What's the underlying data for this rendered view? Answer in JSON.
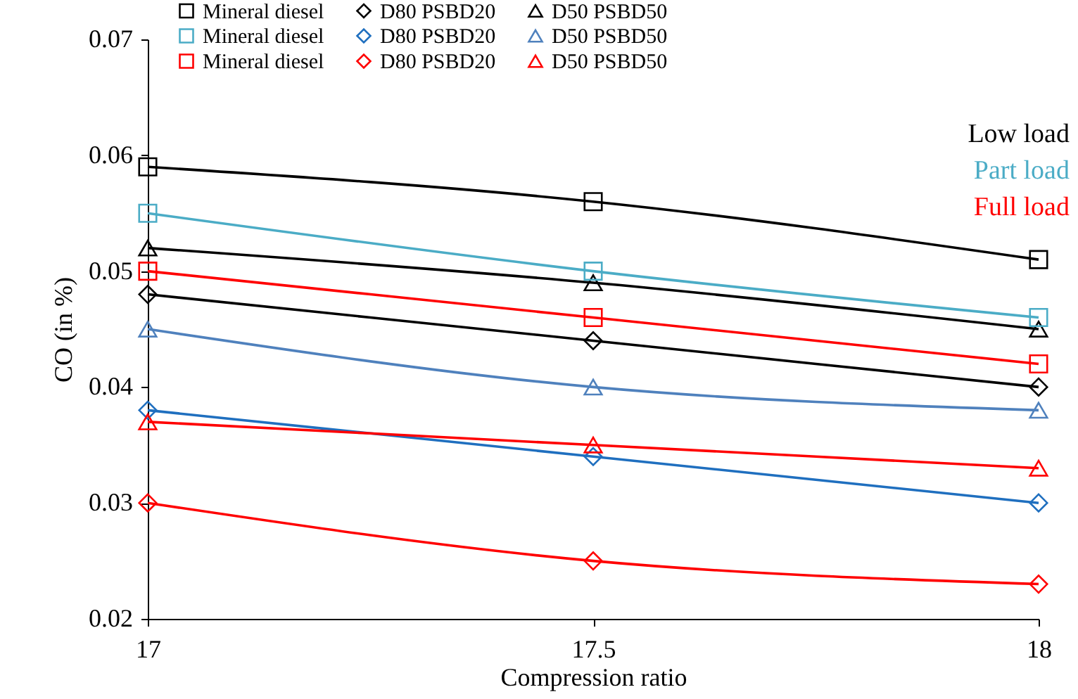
{
  "chart_data": {
    "type": "line",
    "xlabel": "Compression ratio",
    "ylabel": "CO (in %)",
    "x": [
      17,
      17.5,
      18
    ],
    "xlim": [
      17,
      18
    ],
    "xticks": [
      17,
      17.5,
      18
    ],
    "ylim": [
      0.02,
      0.07
    ],
    "yticks": [
      0.02,
      0.03,
      0.04,
      0.05,
      0.06,
      0.07
    ],
    "grid": false,
    "legend": "top left",
    "line_style": "solid",
    "series": [
      {
        "name": "Mineral diesel",
        "color": "#000000",
        "marker": "square",
        "values": [
          0.059,
          0.056,
          0.051
        ]
      },
      {
        "name": "D80 PSBD20",
        "color": "#000000",
        "marker": "diamond",
        "values": [
          0.048,
          0.044,
          0.04
        ]
      },
      {
        "name": "D50 PSBD50",
        "color": "#000000",
        "marker": "triangle",
        "values": [
          0.052,
          0.049,
          0.045
        ]
      },
      {
        "name": "Mineral diesel",
        "color": "#4bacc6",
        "marker": "square",
        "values": [
          0.055,
          0.05,
          0.046
        ]
      },
      {
        "name": "D80 PSBD20",
        "color": "#1f6fbf",
        "marker": "diamond",
        "values": [
          0.038,
          0.034,
          0.03
        ]
      },
      {
        "name": "D50 PSBD50",
        "color": "#4f81bd",
        "marker": "triangle",
        "values": [
          0.045,
          0.04,
          0.038
        ]
      },
      {
        "name": "Mineral diesel",
        "color": "#ff0000",
        "marker": "square",
        "values": [
          0.05,
          0.046,
          0.042
        ]
      },
      {
        "name": "D80 PSBD20",
        "color": "#ff0000",
        "marker": "diamond",
        "values": [
          0.03,
          0.025,
          0.023
        ]
      },
      {
        "name": "D50 PSBD50",
        "color": "#ff0000",
        "marker": "triangle",
        "values": [
          0.037,
          0.035,
          0.033
        ]
      }
    ],
    "annotations": [
      "Low load",
      "Part load",
      "Full load"
    ]
  }
}
